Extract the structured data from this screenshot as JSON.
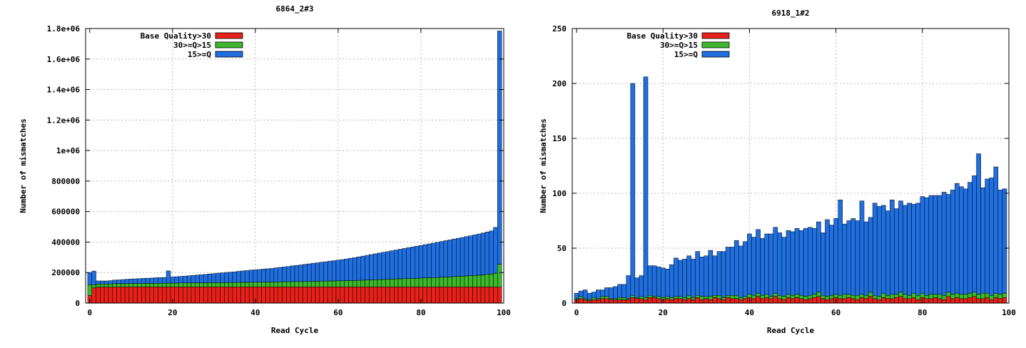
{
  "chart_data": [
    {
      "type": "bar",
      "stacked": true,
      "title": "6864_2#3",
      "xlabel": "Read Cycle",
      "ylabel": "Number of mismatches",
      "xlim": [
        -1,
        100
      ],
      "ylim": [
        0,
        1800000
      ],
      "xticks": [
        0,
        20,
        40,
        60,
        80,
        100
      ],
      "xtick_labels": [
        "0",
        "20",
        "40",
        "60",
        "80",
        "100"
      ],
      "yticks": [
        0,
        200000,
        400000,
        600000,
        800000,
        1000000,
        1200000,
        1400000,
        1600000,
        1800000
      ],
      "ytick_labels": [
        "0",
        "200000",
        "400000",
        "600000",
        "800000",
        "1e+06",
        "1.2e+06",
        "1.4e+06",
        "1.6e+06",
        "1.8e+06"
      ],
      "grid": true,
      "legend_position": "top-left",
      "series": [
        {
          "name": "Base Quality>30",
          "color": "#e8201a",
          "values": [
            50000,
            100000,
            105000,
            105000,
            105000,
            105000,
            106000,
            106000,
            106000,
            106000,
            106000,
            106000,
            106000,
            106000,
            106000,
            106000,
            106000,
            106000,
            106000,
            106000,
            106000,
            106000,
            106000,
            106000,
            106000,
            106000,
            106000,
            106000,
            106000,
            106000,
            106000,
            106000,
            106000,
            106000,
            106000,
            106000,
            106000,
            106000,
            106000,
            106000,
            106000,
            106000,
            106000,
            106000,
            106000,
            106000,
            106000,
            106000,
            106000,
            106000,
            106000,
            106000,
            106000,
            106000,
            106000,
            106000,
            106000,
            106000,
            106000,
            106000,
            106000,
            106000,
            106000,
            106000,
            106000,
            106000,
            106000,
            106000,
            106000,
            106000,
            106000,
            106000,
            106000,
            106000,
            106000,
            106000,
            106000,
            106000,
            106000,
            106000,
            106000,
            106000,
            106000,
            106000,
            106000,
            106000,
            106000,
            106000,
            106000,
            106000,
            106000,
            106000,
            106000,
            106000,
            106000,
            106000,
            106000,
            106000,
            106000,
            104000
          ]
        },
        {
          "name": "30>=Q>15",
          "color": "#3cb82a",
          "values": [
            70000,
            20000,
            20000,
            20000,
            20000,
            20000,
            21000,
            21000,
            21000,
            22000,
            22000,
            22000,
            22000,
            23000,
            23000,
            23000,
            24000,
            24000,
            24000,
            25000,
            25000,
            25000,
            26000,
            26000,
            26000,
            26000,
            27000,
            27000,
            27000,
            28000,
            28000,
            28000,
            28000,
            29000,
            29000,
            29000,
            30000,
            30000,
            30000,
            31000,
            31000,
            31000,
            32000,
            32000,
            32000,
            33000,
            33000,
            34000,
            34000,
            35000,
            35000,
            35000,
            36000,
            36000,
            37000,
            37000,
            38000,
            38000,
            39000,
            39000,
            40000,
            40000,
            41000,
            42000,
            42000,
            43000,
            44000,
            45000,
            46000,
            47000,
            48000,
            49000,
            50000,
            51000,
            52000,
            53000,
            54000,
            55000,
            56000,
            57000,
            58000,
            59000,
            60000,
            61000,
            62000,
            64000,
            65000,
            66000,
            68000,
            69000,
            70000,
            72000,
            73000,
            75000,
            77000,
            79000,
            82000,
            85000,
            90000,
            150000
          ]
        },
        {
          "name": "15>=Q",
          "color": "#1f6fe0",
          "values": [
            80000,
            90000,
            20000,
            20000,
            20000,
            22000,
            24000,
            25000,
            27000,
            28000,
            30000,
            31000,
            32000,
            33000,
            34000,
            35000,
            36000,
            37000,
            38000,
            80000,
            40000,
            42000,
            43000,
            45000,
            47000,
            49000,
            51000,
            53000,
            55000,
            57000,
            59000,
            62000,
            64000,
            66000,
            68000,
            70000,
            72000,
            75000,
            77000,
            79000,
            81000,
            83000,
            85000,
            87000,
            89000,
            92000,
            95000,
            97000,
            100000,
            103000,
            106000,
            109000,
            112000,
            115000,
            118000,
            121000,
            124000,
            127000,
            130000,
            133000,
            136000,
            139000,
            142000,
            146000,
            150000,
            154000,
            158000,
            162000,
            166000,
            170000,
            174000,
            178000,
            182000,
            186000,
            190000,
            194000,
            198000,
            202000,
            206000,
            210000,
            214000,
            218000,
            222000,
            226000,
            230000,
            234000,
            238000,
            242000,
            246000,
            250000,
            254000,
            258000,
            262000,
            266000,
            270000,
            274000,
            278000,
            282000,
            300000,
            1530000
          ]
        }
      ]
    },
    {
      "type": "bar",
      "stacked": true,
      "title": "6918_1#2",
      "xlabel": "Read Cycle",
      "ylabel": "Number of mismatches",
      "xlim": [
        -1,
        100
      ],
      "ylim": [
        0,
        250
      ],
      "xticks": [
        0,
        20,
        40,
        60,
        80,
        100
      ],
      "xtick_labels": [
        "0",
        "20",
        "40",
        "60",
        "80",
        "100"
      ],
      "yticks": [
        0,
        50,
        100,
        150,
        200,
        250
      ],
      "ytick_labels": [
        "0",
        "50",
        "100",
        "150",
        "200",
        "250"
      ],
      "grid": true,
      "legend_position": "top-left",
      "series": [
        {
          "name": "Base Quality>30",
          "color": "#e8201a",
          "values": [
            3,
            4,
            3,
            2,
            3,
            3,
            4,
            4,
            3,
            3,
            3,
            3,
            3,
            5,
            4,
            4,
            3,
            5,
            5,
            4,
            3,
            4,
            3,
            4,
            4,
            3,
            4,
            3,
            5,
            3,
            4,
            3,
            5,
            4,
            3,
            5,
            4,
            4,
            3,
            4,
            5,
            4,
            6,
            4,
            5,
            4,
            6,
            4,
            3,
            5,
            4,
            5,
            4,
            3,
            4,
            5,
            6,
            4,
            3,
            4,
            5,
            4,
            4,
            5,
            4,
            3,
            5,
            4,
            6,
            4,
            3,
            5,
            4,
            4,
            5,
            6,
            4,
            4,
            5,
            3,
            5,
            4,
            4,
            5,
            4,
            3,
            6,
            4,
            5,
            4,
            4,
            5,
            6,
            4,
            4,
            5,
            3,
            5,
            4,
            5
          ]
        },
        {
          "name": "30>=Q>15",
          "color": "#3cb82a",
          "values": [
            1,
            2,
            1,
            1,
            2,
            1,
            2,
            2,
            1,
            1,
            2,
            2,
            1,
            2,
            1,
            2,
            2,
            2,
            1,
            2,
            2,
            2,
            2,
            2,
            2,
            2,
            3,
            2,
            2,
            3,
            2,
            3,
            2,
            3,
            2,
            2,
            3,
            3,
            2,
            2,
            3,
            3,
            3,
            3,
            3,
            2,
            3,
            3,
            3,
            3,
            3,
            3,
            3,
            3,
            3,
            3,
            4,
            3,
            3,
            3,
            3,
            3,
            4,
            3,
            3,
            4,
            3,
            3,
            4,
            3,
            3,
            4,
            3,
            4,
            3,
            4,
            4,
            3,
            4,
            4,
            4,
            3,
            4,
            3,
            4,
            4,
            4,
            4,
            4,
            4,
            4,
            4,
            4,
            4,
            5,
            4,
            4,
            4,
            4,
            4
          ]
        },
        {
          "name": "15>=Q",
          "color": "#1f6fe0",
          "values": [
            5,
            5,
            8,
            6,
            5,
            8,
            6,
            8,
            10,
            11,
            12,
            12,
            21,
            193,
            18,
            19,
            201,
            27,
            28,
            27,
            27,
            25,
            30,
            35,
            33,
            35,
            36,
            35,
            40,
            36,
            37,
            42,
            36,
            40,
            42,
            44,
            44,
            50,
            47,
            50,
            55,
            53,
            58,
            52,
            55,
            57,
            60,
            57,
            54,
            58,
            58,
            60,
            59,
            62,
            62,
            60,
            64,
            57,
            70,
            64,
            69,
            87,
            64,
            67,
            70,
            68,
            85,
            67,
            68,
            84,
            82,
            80,
            77,
            86,
            78,
            83,
            81,
            84,
            81,
            84,
            88,
            89,
            90,
            90,
            90,
            94,
            89,
            95,
            100,
            98,
            96,
            101,
            106,
            128,
            96,
            104,
            107,
            115,
            95,
            95
          ]
        }
      ]
    }
  ]
}
